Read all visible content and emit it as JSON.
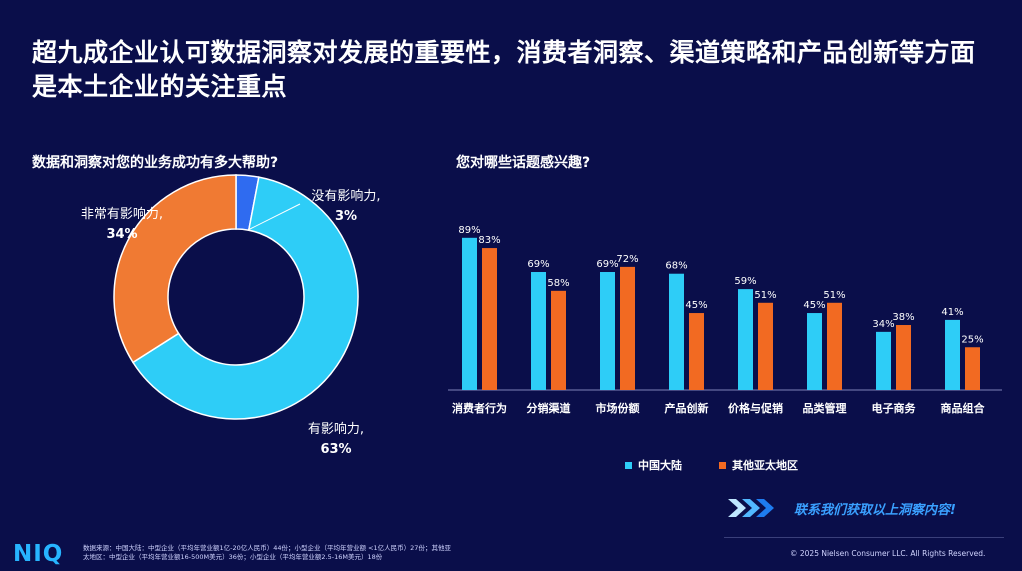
{
  "page": {
    "title": "超九成企业认可数据洞察对发展的重要性，消费者洞察、渠道策略和产品创新等方面是本土企业的关注重点",
    "cta_label": "联系我们获取以上洞察内容!",
    "logo_text": "NIQ",
    "source_note": "数据来源：中国大陆：中型企业（平均年营业额1亿-20亿人民币）44份；小型企业（平均年营业额 <1亿人民币）27份；其他亚太地区：中型企业（平均年营业额16-500M美元）36份；小型企业（平均年营业额2.5-16M美元）18份",
    "copyright": "© 2025 Nielsen Consumer LLC. All Rights Reserved.",
    "colors": {
      "background": "#0a0e4a",
      "cyan": "#2ecdf7",
      "orange": "#f26a22",
      "pie_blue": "#2f6bf0",
      "pie_orange": "#f07a33"
    }
  },
  "chart_data": [
    {
      "type": "pie",
      "title": "数据和洞察对您的业务成功有多大帮助?",
      "slices": [
        {
          "name": "没有影响力,",
          "value": 3,
          "label": "3%",
          "color": "#2f6bf0"
        },
        {
          "name": "有影响力,",
          "value": 63,
          "label": "63%",
          "color": "#2ecdf7"
        },
        {
          "name": "非常有影响力,",
          "value": 34,
          "label": "34%",
          "color": "#f07a33"
        }
      ]
    },
    {
      "type": "bar",
      "title": "您对哪些话题感兴趣?",
      "categories": [
        "消费者行为",
        "分销渠道",
        "市场份额",
        "产品创新",
        "价格与促销",
        "品类管理",
        "电子商务",
        "商品组合"
      ],
      "series": [
        {
          "name": "中国大陆",
          "color": "#2ecdf7",
          "values": [
            89,
            69,
            69,
            68,
            59,
            45,
            34,
            41
          ],
          "labels": [
            "89%",
            "69%",
            "69%",
            "68%",
            "59%",
            "45%",
            "34%",
            "41%"
          ]
        },
        {
          "name": "其他亚太地区",
          "color": "#f26a22",
          "values": [
            83,
            58,
            72,
            45,
            51,
            51,
            38,
            25
          ],
          "labels": [
            "83%",
            "58%",
            "72%",
            "45%",
            "51%",
            "51%",
            "38%",
            "25%"
          ]
        }
      ],
      "ylim": [
        0,
        100
      ]
    }
  ]
}
